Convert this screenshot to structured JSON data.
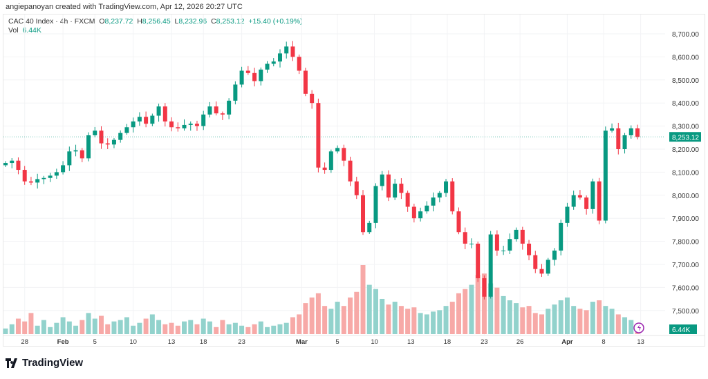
{
  "credit": "angiepanoyan created with TradingView.com, Apr 12, 2026 20:27 UTC",
  "legend": {
    "symbol": "CAC 40 Index · 4h · FXCM",
    "o_label": "O",
    "o": "8,237.72",
    "h_label": "H",
    "h": "8,256.45",
    "l_label": "L",
    "l": "8,232.96",
    "c_label": "C",
    "c": "8,253.12",
    "change": "+15.40 (+0.19%)",
    "vol_label": "Vol",
    "vol": "6.44K"
  },
  "logo_text": "TradingView",
  "colors": {
    "up": "#089981",
    "down": "#f23645",
    "up_vol": "#92d2cc",
    "down_vol": "#f7a9a7",
    "last": "#089981"
  },
  "chart_data": {
    "type": "candlestick",
    "title": "CAC 40 Index · 4h · FXCM",
    "ylim": [
      7400,
      8760
    ],
    "y_ticks": [
      "8,700.00",
      "8,600.00",
      "8,500.00",
      "8,400.00",
      "8,300.00",
      "8,200.00",
      "8,100.00",
      "8,000.00",
      "7,900.00",
      "7,800.00",
      "7,700.00",
      "7,600.00",
      "7,500.00"
    ],
    "y_tick_values": [
      8700,
      8600,
      8500,
      8400,
      8300,
      8200,
      8100,
      8000,
      7900,
      7800,
      7700,
      7600,
      7500
    ],
    "x_ticks": [
      {
        "label": "28",
        "index": 3,
        "bold": false
      },
      {
        "label": "Feb",
        "index": 9,
        "bold": true
      },
      {
        "label": "5",
        "index": 14,
        "bold": false
      },
      {
        "label": "10",
        "index": 20,
        "bold": false
      },
      {
        "label": "13",
        "index": 26,
        "bold": false
      },
      {
        "label": "18",
        "index": 31,
        "bold": false
      },
      {
        "label": "23",
        "index": 37,
        "bold": false
      },
      {
        "label": "Mar",
        "index": 46.4,
        "bold": true
      },
      {
        "label": "5",
        "index": 52,
        "bold": false
      },
      {
        "label": "10",
        "index": 57.8,
        "bold": false
      },
      {
        "label": "13",
        "index": 63.5,
        "bold": false
      },
      {
        "label": "18",
        "index": 69.2,
        "bold": false
      },
      {
        "label": "23",
        "index": 75,
        "bold": false
      },
      {
        "label": "26",
        "index": 80.6,
        "bold": false
      },
      {
        "label": "Apr",
        "index": 88,
        "bold": true
      },
      {
        "label": "8",
        "index": 93.7,
        "bold": false
      },
      {
        "label": "13",
        "index": 99.5,
        "bold": false
      }
    ],
    "first_open": 8130,
    "closes": [
      8140,
      8150,
      8110,
      8060,
      8055,
      8070,
      8075,
      8085,
      8100,
      8130,
      8190,
      8195,
      8160,
      8260,
      8280,
      8225,
      8220,
      8240,
      8270,
      8295,
      8320,
      8340,
      8310,
      8345,
      8385,
      8320,
      8295,
      8290,
      8305,
      8310,
      8300,
      8350,
      8385,
      8355,
      8350,
      8410,
      8480,
      8540,
      8530,
      8495,
      8545,
      8570,
      8580,
      8615,
      8645,
      8600,
      8540,
      8440,
      8400,
      8120,
      8110,
      8190,
      8205,
      8150,
      8060,
      8000,
      7840,
      7880,
      8040,
      8090,
      7990,
      8050,
      8010,
      7950,
      7900,
      7930,
      7955,
      7990,
      8010,
      8060,
      7930,
      7840,
      7790,
      7790,
      7640,
      7560,
      7830,
      7760,
      7760,
      7810,
      7850,
      7790,
      7740,
      7680,
      7660,
      7720,
      7760,
      7880,
      7950,
      8000,
      7990,
      7940,
      8060,
      7890,
      8280,
      8290,
      8200,
      8260,
      8290,
      8253.12
    ],
    "volumes_k": [
      8,
      14,
      22,
      18,
      30,
      12,
      20,
      10,
      16,
      24,
      18,
      12,
      20,
      30,
      22,
      26,
      14,
      18,
      20,
      24,
      12,
      16,
      22,
      28,
      20,
      14,
      16,
      12,
      18,
      20,
      14,
      22,
      18,
      10,
      20,
      14,
      16,
      12,
      10,
      14,
      18,
      10,
      12,
      14,
      16,
      24,
      28,
      44,
      52,
      58,
      40,
      36,
      46,
      40,
      52,
      60,
      98,
      70,
      64,
      50,
      42,
      46,
      40,
      36,
      38,
      30,
      28,
      32,
      34,
      40,
      46,
      58,
      64,
      70,
      84,
      86,
      72,
      66,
      54,
      48,
      44,
      38,
      40,
      30,
      28,
      36,
      42,
      48,
      52,
      40,
      36,
      34,
      46,
      48,
      40,
      36,
      28,
      24,
      20,
      6.44
    ],
    "last_price_label": "8,253.12",
    "last_volume_label": "6.44K",
    "grid": true
  }
}
